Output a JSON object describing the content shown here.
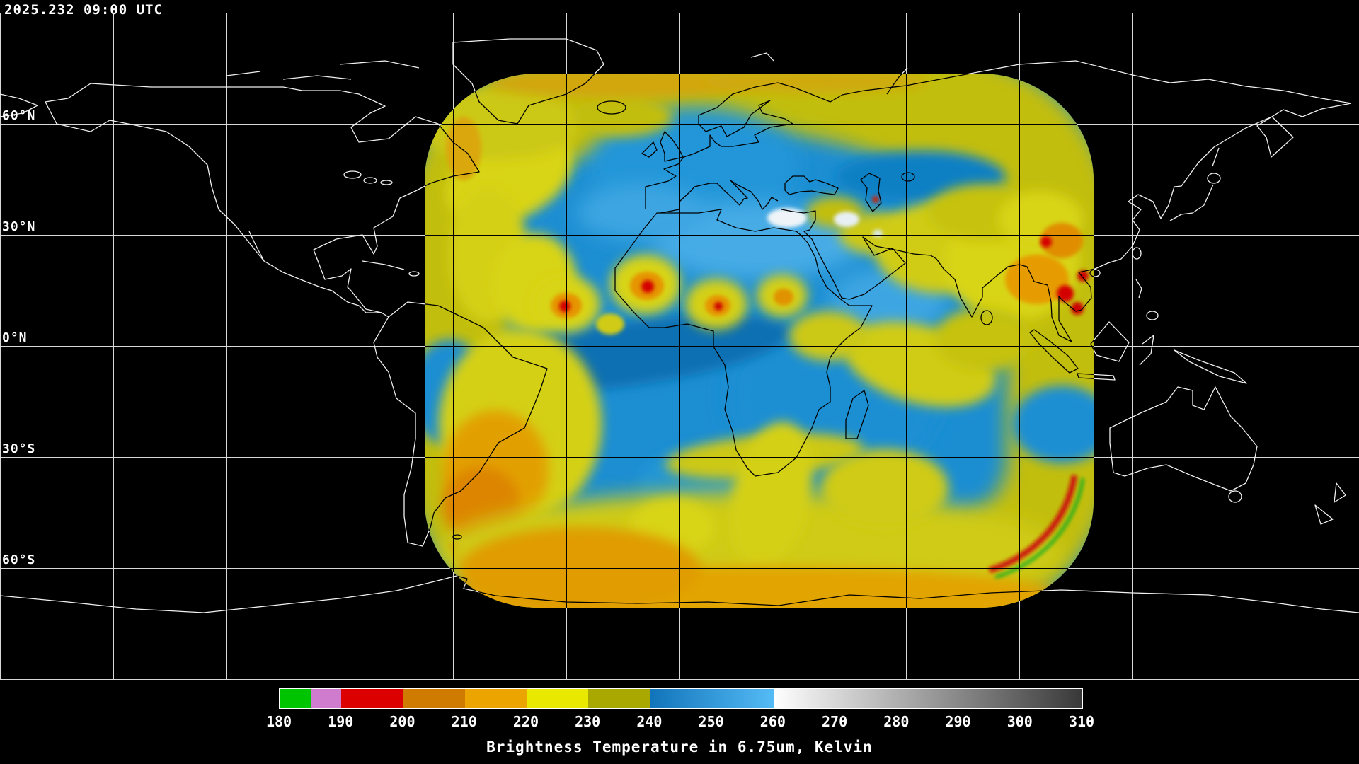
{
  "header": {
    "timestamp": "2025.232 09:00 UTC"
  },
  "map": {
    "lat_labels": [
      "60°N",
      "30°N",
      "0°N",
      "30°S",
      "60°S"
    ],
    "background_color": "#000000",
    "gridline_color": "#d8d8d8",
    "coastline_color": "#f0f0f0",
    "swath_base_color": "#1b8ed2"
  },
  "colorbar": {
    "title": "Brightness Temperature in 6.75um, Kelvin",
    "min": 180,
    "max": 310,
    "ticks": [
      180,
      190,
      200,
      210,
      220,
      230,
      240,
      250,
      260,
      270,
      280,
      290,
      300,
      310
    ],
    "segments": [
      {
        "from": 180,
        "to": 185,
        "color": "#00c400"
      },
      {
        "from": 185,
        "to": 190,
        "color": "#cf7ccf"
      },
      {
        "from": 190,
        "to": 200,
        "color": "#dd0000"
      },
      {
        "from": 200,
        "to": 210,
        "color": "#cf7a00"
      },
      {
        "from": 210,
        "to": 220,
        "color": "#eca400"
      },
      {
        "from": 220,
        "to": 230,
        "color": "#e8e800"
      },
      {
        "from": 230,
        "to": 240,
        "color": "#a8a800"
      },
      {
        "from": 240,
        "to": 260,
        "color_start": "#1174ba",
        "color_end": "#55bbf5"
      },
      {
        "from": 260,
        "to": 310,
        "color_start": "#ffffff",
        "color_end": "#383838"
      }
    ]
  }
}
